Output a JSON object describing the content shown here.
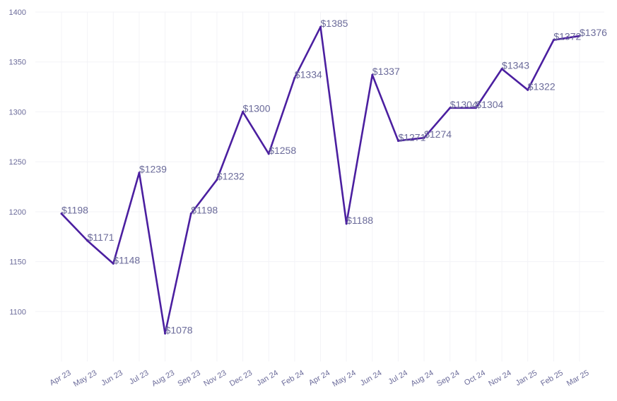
{
  "chart_data": {
    "type": "line",
    "title": "",
    "xlabel": "",
    "ylabel": "",
    "ylim": [
      1050,
      1400
    ],
    "yticks": [
      1100,
      1150,
      1200,
      1250,
      1300,
      1350,
      1400
    ],
    "grid": true,
    "legend": "none",
    "categories": [
      "Apr 23",
      "May 23",
      "Jun 23",
      "Jul 23",
      "Aug 23",
      "Sep 23",
      "Nov 23",
      "Dec 23",
      "Jan 24",
      "Feb 24",
      "Apr 24",
      "May 24",
      "Jun 24",
      "Jul 24",
      "Aug 24",
      "Sep 24",
      "Oct 24",
      "Nov 24",
      "Jan 25",
      "Feb 25",
      "Mar 25"
    ],
    "series": [
      {
        "values": [
          1198,
          1171,
          1148,
          1239,
          1078,
          1198,
          1232,
          1300,
          1258,
          1334,
          1385,
          1188,
          1337,
          1271,
          1274,
          1304,
          1304,
          1343,
          1322,
          1372,
          1376
        ],
        "labels": [
          "$1198",
          "$1171",
          "$1148",
          "$1239",
          "$1078",
          "$1198",
          "$1232",
          "$1300",
          "$1258",
          "$1334",
          "$1385",
          "$1188",
          "$1337",
          "$1271",
          "$1274",
          "$1304",
          "$1304",
          "$1343",
          "$1322",
          "$1372",
          "$1376"
        ]
      }
    ],
    "colors": {
      "line": "#4b1fa0",
      "text": "#6b6b9a",
      "grid": "#f3f3f7"
    }
  }
}
